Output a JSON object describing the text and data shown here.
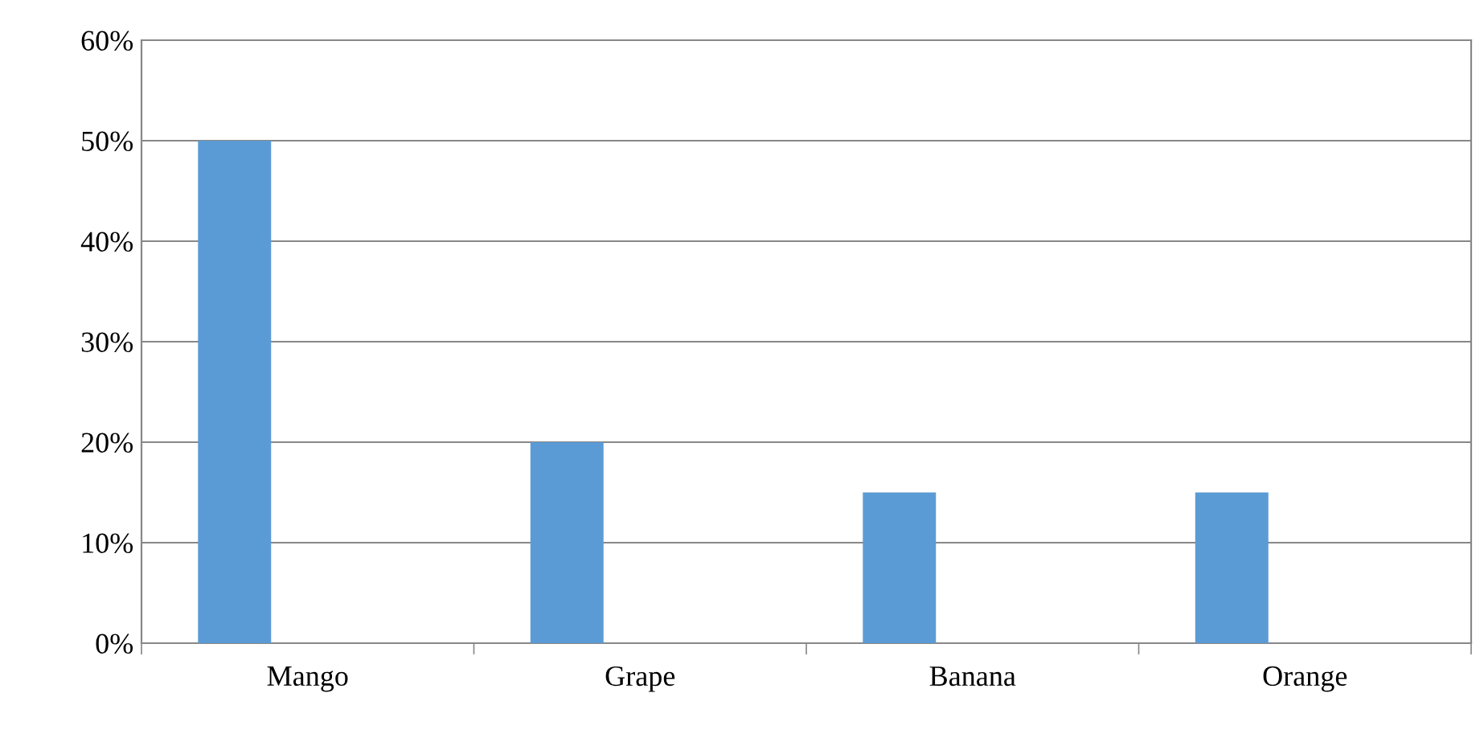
{
  "chart_data": {
    "type": "bar",
    "categories": [
      "Mango",
      "Grape",
      "Banana",
      "Orange"
    ],
    "values": [
      50,
      20,
      15,
      15
    ],
    "color": "#5b9bd5",
    "ylim": [
      0,
      60
    ],
    "yticks": [
      {
        "value": 0,
        "label": "0%"
      },
      {
        "value": 10,
        "label": "10%"
      },
      {
        "value": 20,
        "label": "20%"
      },
      {
        "value": 30,
        "label": "30%"
      },
      {
        "value": 40,
        "label": "40%"
      },
      {
        "value": 50,
        "label": "50%"
      },
      {
        "value": 60,
        "label": "60%"
      }
    ],
    "grid": "y",
    "legend": false
  }
}
